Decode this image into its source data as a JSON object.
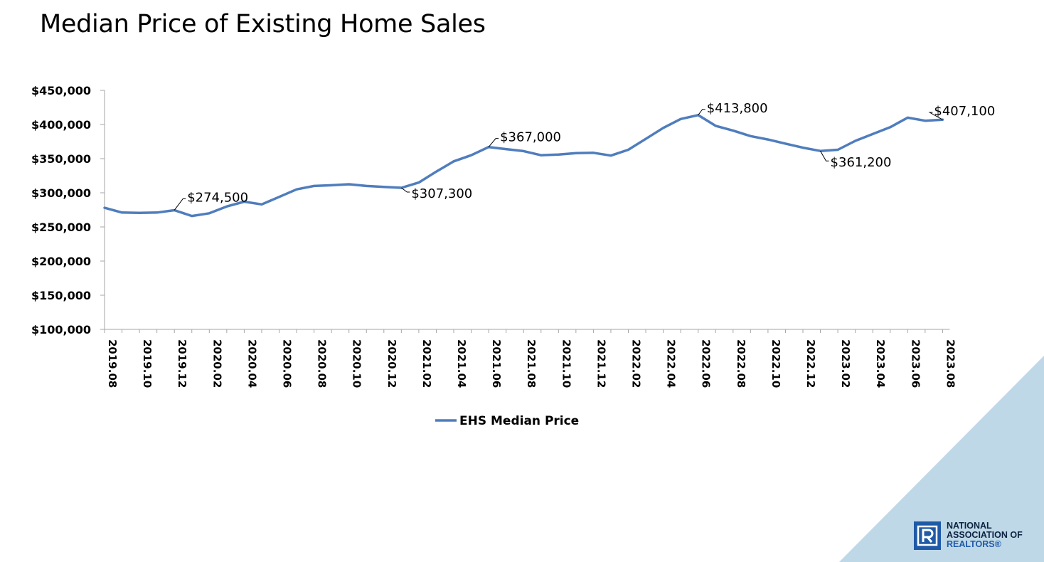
{
  "title": "Median Price of Existing Home Sales",
  "colors": {
    "line": "#4f7dbd",
    "corner": "#bfd8e8",
    "axis": "#a6a6a6",
    "logo_blue": "#1f5aa6",
    "logo_navy": "#0c2340"
  },
  "logo": {
    "lines": [
      "NATIONAL",
      "ASSOCIATION OF",
      "REALTORS®"
    ]
  },
  "chart_data": {
    "type": "line",
    "title": "Median Price of Existing Home Sales",
    "xlabel": "",
    "ylabel": "",
    "ylim": [
      100000,
      450000
    ],
    "y_ticks": [
      "$100,000",
      "$150,000",
      "$200,000",
      "$250,000",
      "$300,000",
      "$350,000",
      "$400,000",
      "$450,000"
    ],
    "x_tick_labels": [
      "2019.08",
      "2019.10",
      "2019.12",
      "2020.02",
      "2020.04",
      "2020.06",
      "2020.08",
      "2020.10",
      "2020.12",
      "2021.02",
      "2021.04",
      "2021.06",
      "2021.08",
      "2021.10",
      "2021.12",
      "2022.02",
      "2022.04",
      "2022.06",
      "2022.08",
      "2022.10",
      "2022.12",
      "2023.02",
      "2023.04",
      "2023.06",
      "2023.08"
    ],
    "grid": false,
    "legend_position": "bottom",
    "x": [
      "2019.08",
      "2019.09",
      "2019.10",
      "2019.11",
      "2019.12",
      "2020.01",
      "2020.02",
      "2020.03",
      "2020.04",
      "2020.05",
      "2020.06",
      "2020.07",
      "2020.08",
      "2020.09",
      "2020.10",
      "2020.11",
      "2020.12",
      "2021.01",
      "2021.02",
      "2021.03",
      "2021.04",
      "2021.05",
      "2021.06",
      "2021.07",
      "2021.08",
      "2021.09",
      "2021.10",
      "2021.11",
      "2021.12",
      "2022.01",
      "2022.02",
      "2022.03",
      "2022.04",
      "2022.05",
      "2022.06",
      "2022.07",
      "2022.08",
      "2022.09",
      "2022.10",
      "2022.11",
      "2022.12",
      "2023.01",
      "2023.02",
      "2023.03",
      "2023.04",
      "2023.05",
      "2023.06",
      "2023.07",
      "2023.08"
    ],
    "series": [
      {
        "name": "EHS Median Price",
        "values": [
          278000,
          271000,
          270500,
          271000,
          274500,
          266000,
          270000,
          280000,
          287000,
          283000,
          294000,
          305000,
          310000,
          311000,
          312500,
          310000,
          308500,
          307300,
          315000,
          331000,
          346000,
          355000,
          367000,
          364000,
          361000,
          355000,
          356000,
          358000,
          358500,
          354500,
          363000,
          379000,
          395000,
          408000,
          413800,
          398000,
          391000,
          383000,
          378000,
          372000,
          366000,
          361200,
          363000,
          376000,
          386000,
          396000,
          410000,
          405500,
          407100
        ]
      }
    ],
    "data_labels": [
      {
        "x": "2019.12",
        "text": "$274,500"
      },
      {
        "x": "2021.01",
        "text": "$307,300"
      },
      {
        "x": "2021.06",
        "text": "$367,000"
      },
      {
        "x": "2022.06",
        "text": "$413,800"
      },
      {
        "x": "2023.01",
        "text": "$361,200"
      },
      {
        "x": "2023.08",
        "text": "$407,100"
      }
    ]
  }
}
